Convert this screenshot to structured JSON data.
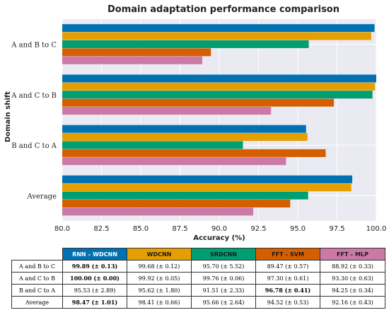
{
  "chart_data": {
    "type": "bar",
    "orientation": "horizontal",
    "title": "Domain adaptation performance comparison",
    "xlabel": "Accuracy (%)",
    "ylabel": "Domain shift",
    "xlim": [
      80.0,
      100.0
    ],
    "xticks": [
      "80.0",
      "82.5",
      "85.0",
      "87.5",
      "90.0",
      "92.5",
      "95.0",
      "97.5",
      "100.0"
    ],
    "xtick_values": [
      80.0,
      82.5,
      85.0,
      87.5,
      90.0,
      92.5,
      95.0,
      97.5,
      100.0
    ],
    "grid": true,
    "categories": [
      "A and B to C",
      "A and C to B",
      "B and C to A",
      "Average"
    ],
    "series": [
      {
        "name": "RNN – WDCNN",
        "color": "#0072b2",
        "values": [
          99.89,
          100.0,
          95.53,
          98.47
        ]
      },
      {
        "name": "WDCNN",
        "color": "#e69f00",
        "values": [
          99.68,
          99.92,
          95.62,
          98.41
        ]
      },
      {
        "name": "SRDCNN",
        "color": "#009e73",
        "values": [
          95.7,
          99.76,
          91.51,
          95.66
        ]
      },
      {
        "name": "FFT – SVM",
        "color": "#d55e00",
        "values": [
          89.47,
          97.3,
          96.78,
          94.52
        ]
      },
      {
        "name": "FFT – MLP",
        "color": "#cc79a7",
        "values": [
          88.92,
          93.3,
          94.25,
          92.16
        ]
      }
    ]
  },
  "table": {
    "headers": [
      "RNN – WDCNN",
      "WDCNN",
      "SRDCNN",
      "FFT – SVM",
      "FFT – MLP"
    ],
    "rows": [
      {
        "label": "A and B to C",
        "cells": [
          "99.89 (± 0.13)",
          "99.68 (± 0.12)",
          "95.70 (± 5.52)",
          "89.47 (± 0.57)",
          "88.92 (± 0.33)"
        ],
        "bold": [
          0
        ]
      },
      {
        "label": "A and C to B",
        "cells": [
          "100.00 (± 0.00)",
          "99.92 (± 0.05)",
          "99.76 (± 0.06)",
          "97.30 (± 0.61)",
          "93.30 (± 0.63)"
        ],
        "bold": [
          0
        ]
      },
      {
        "label": "B and C to A",
        "cells": [
          "95.53 (± 2.89)",
          "95.62 (± 1.80)",
          "91.51 (± 2.33)",
          "96.78 (± 0.41)",
          "94.25 (± 0.34)"
        ],
        "bold": [
          3
        ]
      },
      {
        "label": "Average",
        "cells": [
          "98.47 (± 1.01)",
          "98.41 (± 0.66)",
          "95.66 (± 2.64)",
          "94.52 (± 0.53)",
          "92.16 (± 0.43)"
        ],
        "bold": [
          0
        ]
      }
    ]
  }
}
